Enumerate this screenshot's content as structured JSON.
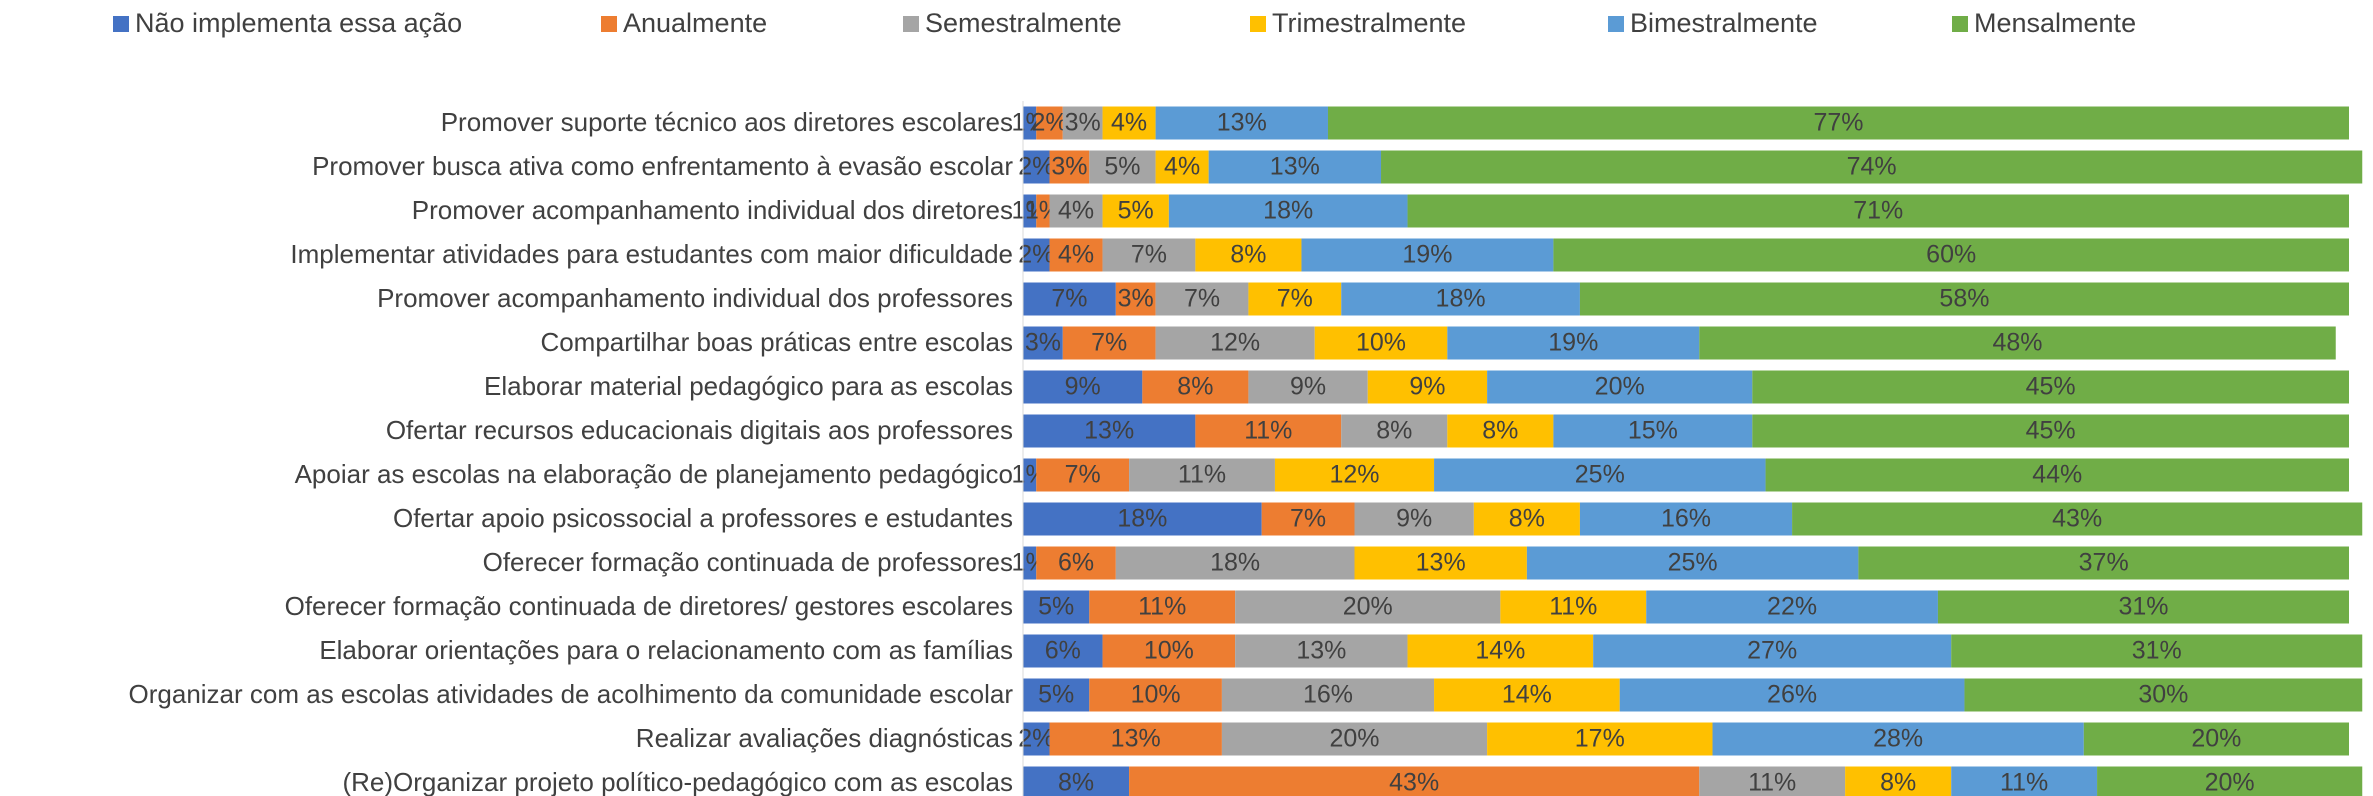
{
  "chart_data": {
    "type": "stacked_bar_horizontal",
    "legend": "top",
    "xlim": [
      0,
      100
    ],
    "categories": [
      "Promover suporte técnico aos diretores escolares",
      "Promover busca ativa como enfrentamento à evasão escolar",
      "Promover acompanhamento individual dos diretores",
      "Implementar atividades para estudantes com maior dificuldade",
      "Promover acompanhamento individual dos professores",
      "Compartilhar boas práticas entre escolas",
      "Elaborar material pedagógico para as escolas",
      "Ofertar recursos educacionais digitais aos professores",
      "Apoiar as escolas na elaboração de planejamento pedagógico",
      "Ofertar apoio psicossocial a professores e estudantes",
      "Oferecer formação continuada de professores",
      "Oferecer formação continuada de diretores/ gestores escolares",
      "Elaborar orientações para o relacionamento com as famílias",
      "Organizar com as escolas atividades de acolhimento da comunidade escolar",
      "Realizar avaliações diagnósticas",
      "(Re)Organizar projeto político-pedagógico com as escolas"
    ],
    "series": [
      {
        "name": "Não implementa essa ação",
        "color": "#4472c4",
        "values": [
          1,
          2,
          1,
          2,
          7,
          3,
          9,
          13,
          1,
          18,
          1,
          5,
          6,
          5,
          2,
          8
        ],
        "value_labels": [
          "1%",
          "2%",
          "1%",
          "2%",
          "7%",
          "3%",
          "9%",
          "13%",
          "1%",
          "18%",
          "1%",
          "5%",
          "6%",
          "5%",
          "2%",
          "8%"
        ]
      },
      {
        "name": "Anualmente",
        "color": "#ed7d31",
        "values": [
          2,
          3,
          1,
          4,
          3,
          7,
          8,
          11,
          7,
          7,
          6,
          11,
          10,
          10,
          13,
          43
        ],
        "value_labels": [
          "2%",
          "3%",
          "1%",
          "4%",
          "3%",
          "7%",
          "8%",
          "11%",
          "7%",
          "7%",
          "6%",
          "11%",
          "10%",
          "10%",
          "13%",
          "43%"
        ]
      },
      {
        "name": "Semestralmente",
        "color": "#a5a5a5",
        "values": [
          3,
          5,
          4,
          7,
          7,
          12,
          9,
          8,
          11,
          9,
          18,
          20,
          13,
          16,
          20,
          11
        ],
        "value_labels": [
          "3%",
          "5%",
          "4%",
          "7%",
          "7%",
          "12%",
          "9%",
          "8%",
          "11%",
          "9%",
          "18%",
          "20%",
          "13%",
          "16%",
          "20%",
          "11%"
        ]
      },
      {
        "name": "Trimestralmente",
        "color": "#ffc000",
        "values": [
          4,
          4,
          5,
          8,
          7,
          10,
          9,
          8,
          12,
          8,
          13,
          11,
          14,
          14,
          17,
          8
        ],
        "value_labels": [
          "4%",
          "4%",
          "5%",
          "8%",
          "7%",
          "10%",
          "9%",
          "8%",
          "12%",
          "8%",
          "13%",
          "11%",
          "14%",
          "14%",
          "17%",
          "8%"
        ]
      },
      {
        "name": "Bimestralmente",
        "color": "#5b9bd5",
        "values": [
          13,
          13,
          18,
          19,
          18,
          19,
          20,
          15,
          25,
          16,
          25,
          22,
          27,
          26,
          28,
          11
        ],
        "value_labels": [
          "13%",
          "13%",
          "18%",
          "19%",
          "18%",
          "19%",
          "20%",
          "15%",
          "25%",
          "16%",
          "25%",
          "22%",
          "27%",
          "26%",
          "28%",
          "11%"
        ]
      },
      {
        "name": "Mensalmente",
        "color": "#70ad47",
        "values": [
          77,
          74,
          71,
          60,
          58,
          48,
          45,
          45,
          44,
          43,
          37,
          31,
          31,
          30,
          20,
          20
        ],
        "value_labels": [
          "77%",
          "74%",
          "71%",
          "60%",
          "58%",
          "48%",
          "45%",
          "45%",
          "44%",
          "43%",
          "37%",
          "31%",
          "31%",
          "30%",
          "20%",
          "20%"
        ]
      }
    ]
  }
}
